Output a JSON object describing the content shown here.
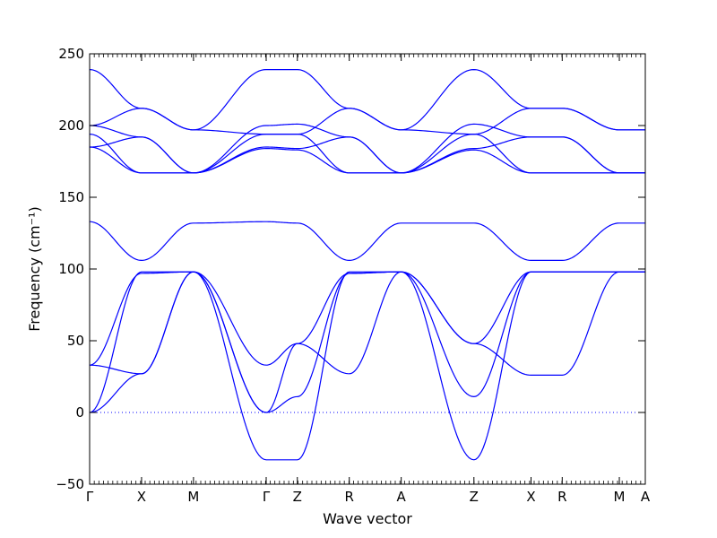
{
  "chart_data": {
    "type": "line",
    "title": "",
    "xlabel": "Wave vector",
    "ylabel": "Frequency (cm⁻¹)",
    "ylim": [
      -50,
      250
    ],
    "yticks": [
      -50,
      0,
      50,
      100,
      150,
      200,
      250
    ],
    "grid": false,
    "legend": "none",
    "line_color": "#0000ff",
    "zero_reference_line": 0,
    "high_symmetry_points": [
      {
        "label": "Γ",
        "x": 0
      },
      {
        "label": "X",
        "x": 1
      },
      {
        "label": "M",
        "x": 2
      },
      {
        "label": "Γ",
        "x": 3.4
      },
      {
        "label": "Z",
        "x": 4
      },
      {
        "label": "R",
        "x": 5
      },
      {
        "label": "A",
        "x": 6
      },
      {
        "label": "Z",
        "x": 7.4
      },
      {
        "label": "X",
        "x": 8.5
      },
      {
        "label": "R",
        "x": 9.1
      },
      {
        "label": "M",
        "x": 10.2
      },
      {
        "label": "A",
        "x": 10.7
      }
    ],
    "series": [
      {
        "x": [
          0,
          1,
          2,
          3.4,
          4,
          5,
          6,
          7.4,
          8.5,
          9.1,
          10.2,
          10.7
        ],
        "values": [
          0,
          27,
          98,
          0,
          48,
          27,
          98,
          48,
          26,
          26,
          98,
          98
        ]
      },
      {
        "x": [
          0,
          1,
          2,
          3.4,
          4,
          5,
          6,
          7.4,
          8.5,
          9.1,
          10.2,
          10.7
        ],
        "values": [
          0,
          98,
          98,
          -33,
          -33,
          98,
          98,
          -33,
          98,
          98,
          98,
          98
        ]
      },
      {
        "x": [
          0,
          1,
          2,
          3.4,
          4,
          5,
          6,
          7.4,
          8.5,
          9.1,
          10.2,
          10.7
        ],
        "values": [
          33,
          97,
          98,
          0,
          11,
          97,
          98,
          11,
          98,
          98,
          98,
          98
        ]
      },
      {
        "x": [
          0,
          1,
          2,
          3.4,
          4,
          5,
          6,
          7.4,
          8.5,
          9.1,
          10.2,
          10.7
        ],
        "values": [
          33,
          27,
          98,
          33,
          48,
          97,
          98,
          48,
          98,
          98,
          98,
          98
        ]
      },
      {
        "x": [
          0,
          1,
          2,
          3.4,
          4,
          5,
          6,
          7.4,
          8.5,
          9.1,
          10.2,
          10.7
        ],
        "values": [
          133,
          106,
          132,
          133,
          132,
          106,
          132,
          132,
          106,
          106,
          132,
          132
        ]
      },
      {
        "x": [
          0,
          1,
          2,
          3.4,
          4,
          5,
          6,
          7.4,
          8.5,
          9.1,
          10.2,
          10.7
        ],
        "values": [
          185,
          167,
          167,
          184,
          183,
          167,
          167,
          183,
          167,
          167,
          167,
          167
        ]
      },
      {
        "x": [
          0,
          1,
          2,
          3.4,
          4,
          5,
          6,
          7.4,
          8.5,
          9.1,
          10.2,
          10.7
        ],
        "values": [
          185,
          192,
          167,
          185,
          184,
          192,
          167,
          184,
          192,
          192,
          167,
          167
        ]
      },
      {
        "x": [
          0,
          1,
          2,
          3.4,
          4,
          5,
          6,
          7.4,
          8.5,
          9.1,
          10.2,
          10.7
        ],
        "values": [
          194,
          167,
          167,
          194,
          194,
          167,
          167,
          194,
          167,
          167,
          167,
          167
        ]
      },
      {
        "x": [
          0,
          1,
          2,
          3.4,
          4,
          5,
          6,
          7.4,
          8.5,
          9.1,
          10.2,
          10.7
        ],
        "values": [
          200,
          192,
          167,
          200,
          201,
          192,
          167,
          201,
          192,
          192,
          167,
          167
        ]
      },
      {
        "x": [
          0,
          1,
          2,
          3.4,
          4,
          5,
          6,
          7.4,
          8.5,
          9.1,
          10.2,
          10.7
        ],
        "values": [
          200,
          212,
          197,
          194,
          194,
          212,
          197,
          194,
          212,
          212,
          197,
          197
        ]
      },
      {
        "x": [
          0,
          1,
          2,
          3.4,
          4,
          5,
          6,
          7.4,
          8.5,
          9.1,
          10.2,
          10.7
        ],
        "values": [
          239,
          212,
          197,
          239,
          239,
          212,
          197,
          239,
          212,
          212,
          197,
          197
        ]
      }
    ]
  }
}
